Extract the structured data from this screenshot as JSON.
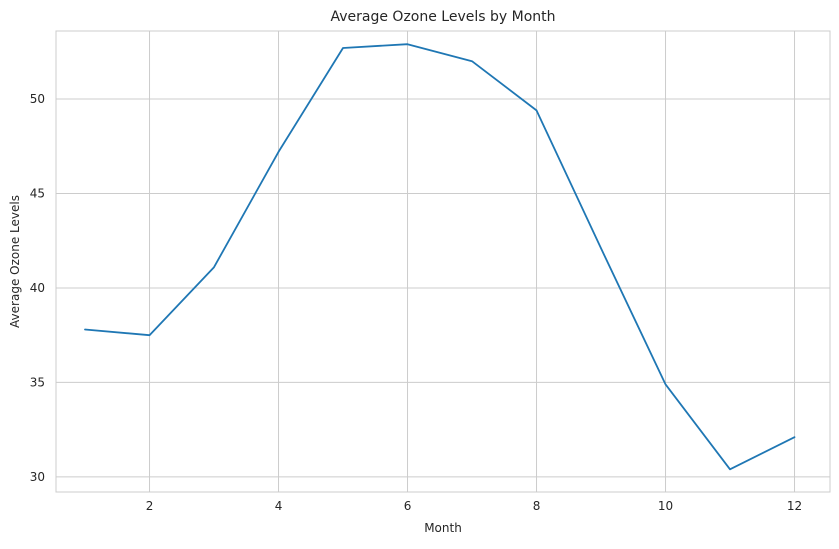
{
  "chart_data": {
    "type": "line",
    "title": "Average Ozone Levels by Month",
    "xlabel": "Month",
    "ylabel": "Average Ozone Levels",
    "xlim": [
      0.55,
      12.55
    ],
    "ylim": [
      29.2,
      53.6
    ],
    "xticks": [
      2,
      4,
      6,
      8,
      10,
      12
    ],
    "yticks": [
      30,
      35,
      40,
      45,
      50
    ],
    "grid": true,
    "line_color": "#1f77b4",
    "series": [
      {
        "x": [
          1,
          2,
          3,
          4,
          5,
          6,
          7,
          8,
          9,
          10,
          11,
          12
        ],
        "values": [
          37.8,
          37.5,
          41.1,
          47.2,
          52.7,
          52.9,
          52.0,
          49.4,
          42.1,
          34.9,
          30.4,
          32.1
        ]
      }
    ]
  }
}
